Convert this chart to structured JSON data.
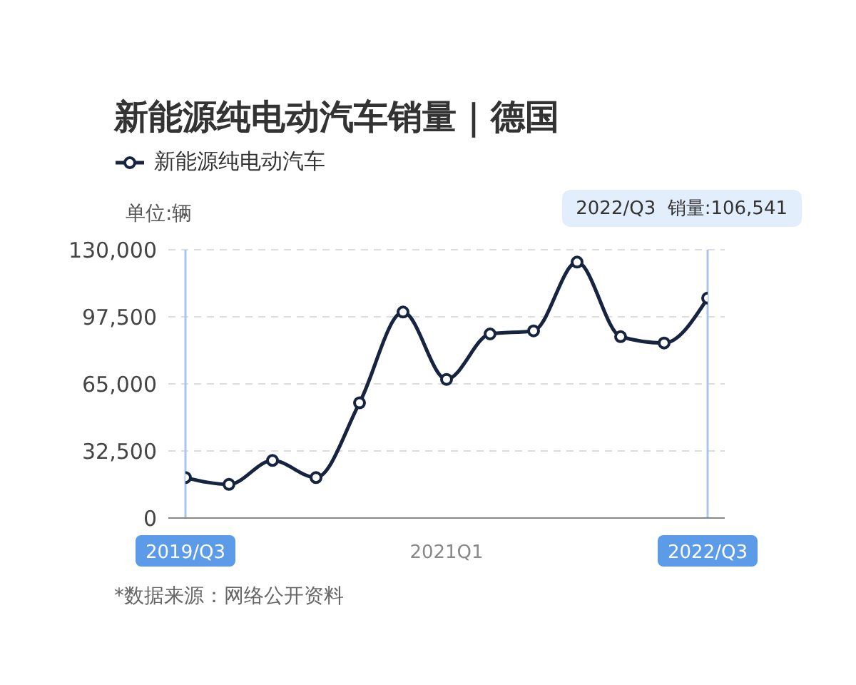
{
  "chart_data": {
    "type": "line",
    "title": "新能源纯电动汽车销量｜德国",
    "ylabel": "单位:辆",
    "categories": [
      "2019/Q3",
      null,
      null,
      null,
      null,
      null,
      "2021Q1",
      null,
      null,
      null,
      null,
      null,
      "2022/Q3"
    ],
    "series": [
      {
        "name": "新能源纯电动汽车",
        "color": "#16243f",
        "values": [
          19600,
          16300,
          27900,
          19600,
          55800,
          99800,
          67200,
          89200,
          90700,
          124000,
          87900,
          84800,
          106541
        ]
      }
    ],
    "ylim": [
      0,
      130000
    ],
    "yticks": [
      {
        "value": 0,
        "label": "0"
      },
      {
        "value": 32500,
        "label": "32,500"
      },
      {
        "value": 65000,
        "label": "65,000"
      },
      {
        "value": 97500,
        "label": "97,500"
      },
      {
        "value": 130000,
        "label": "130,000"
      }
    ],
    "grid": "y",
    "legend": "top left",
    "marker": "circle",
    "line_style": "solid",
    "ref_lines": [
      {
        "axis": "x",
        "value": "2019/Q3",
        "color": "#a9c6ea"
      },
      {
        "axis": "x",
        "value": "2022/Q3",
        "color": "#a9c6ea"
      }
    ],
    "annotations": [
      "2022/Q3  销量:106,541",
      "*数据来源：网络公开资料"
    ]
  }
}
